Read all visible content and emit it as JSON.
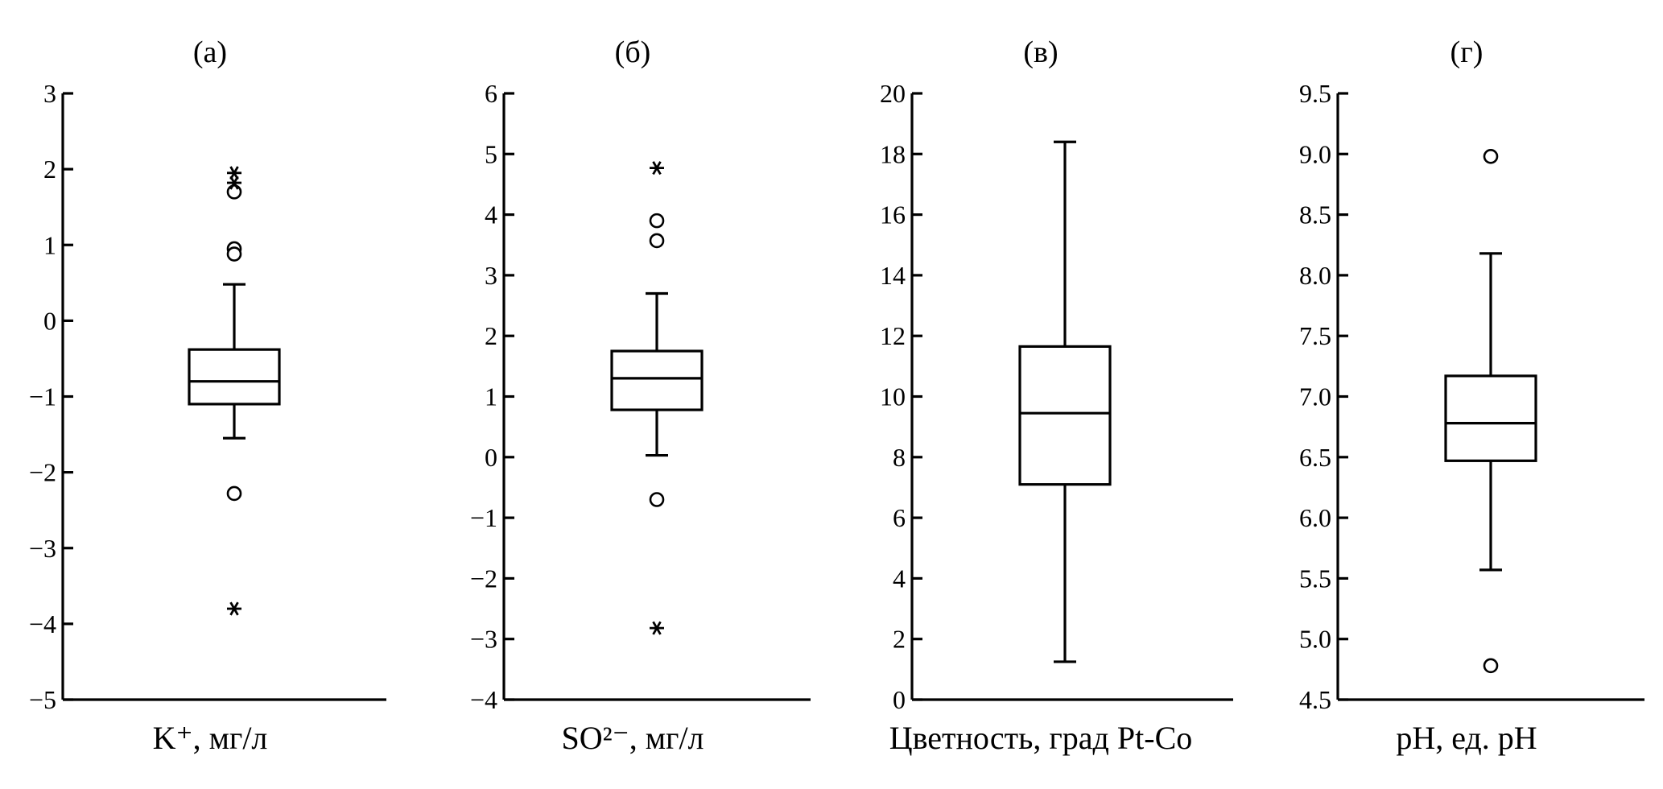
{
  "chart_data": [
    {
      "type": "box",
      "panel": "(а)",
      "xlabel": "K⁺, мг/л",
      "ylim": [
        -5,
        3
      ],
      "yticks": [
        "3",
        "2",
        "1",
        "0",
        "−1",
        "−2",
        "−3",
        "−4",
        "−5"
      ],
      "yticks_values": [
        3,
        2,
        1,
        0,
        -1,
        -2,
        -3,
        -4,
        -5
      ],
      "box": {
        "whisker_low": -1.55,
        "q1": -1.1,
        "median": -0.8,
        "q3": -0.38,
        "whisker_high": 0.48
      },
      "outliers": [
        1.7,
        0.95,
        0.88,
        -2.28
      ],
      "extremes": [
        1.95,
        1.82,
        -3.8
      ]
    },
    {
      "type": "box",
      "panel": "(б)",
      "xlabel": "SO²⁻, мг/л",
      "ylim": [
        -4,
        6
      ],
      "yticks": [
        "6",
        "5",
        "4",
        "3",
        "2",
        "1",
        "0",
        "−1",
        "−2",
        "−3",
        "−4"
      ],
      "yticks_values": [
        6,
        5,
        4,
        3,
        2,
        1,
        0,
        -1,
        -2,
        -3,
        -4
      ],
      "box": {
        "whisker_low": 0.03,
        "q1": 0.78,
        "median": 1.3,
        "q3": 1.75,
        "whisker_high": 2.7
      },
      "outliers": [
        3.9,
        3.57,
        -0.7
      ],
      "extremes": [
        4.77,
        -2.82
      ]
    },
    {
      "type": "box",
      "panel": "(в)",
      "xlabel": "Цветность, град Pt-Co",
      "ylim": [
        0,
        20
      ],
      "yticks": [
        "20",
        "18",
        "16",
        "14",
        "12",
        "10",
        "8",
        "6",
        "4",
        "2",
        "0"
      ],
      "yticks_values": [
        20,
        18,
        16,
        14,
        12,
        10,
        8,
        6,
        4,
        2,
        0
      ],
      "box": {
        "whisker_low": 1.25,
        "q1": 7.1,
        "median": 9.45,
        "q3": 11.65,
        "whisker_high": 18.4
      },
      "outliers": [],
      "extremes": []
    },
    {
      "type": "box",
      "panel": "(г)",
      "xlabel": "pH, ед. pH",
      "ylim": [
        4.5,
        9.5
      ],
      "yticks": [
        "9.5",
        "9.0",
        "8.5",
        "8.0",
        "7.5",
        "7.0",
        "6.5",
        "6.0",
        "5.5",
        "5.0",
        "4.5"
      ],
      "yticks_values": [
        9.5,
        9.0,
        8.5,
        8.0,
        7.5,
        7.0,
        6.5,
        6.0,
        5.5,
        5.0,
        4.5
      ],
      "box": {
        "whisker_low": 5.57,
        "q1": 6.47,
        "median": 6.78,
        "q3": 7.17,
        "whisker_high": 8.18
      },
      "outliers": [
        8.98,
        4.78
      ],
      "extremes": []
    }
  ]
}
